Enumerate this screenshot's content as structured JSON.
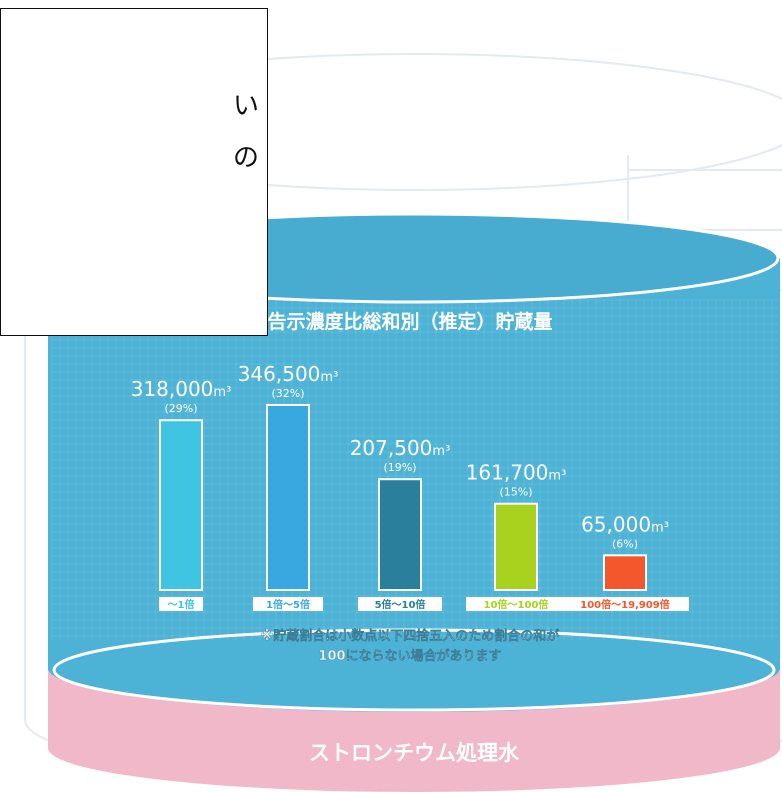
{
  "note_box": {
    "line1": "い",
    "line2": "の"
  },
  "tank_label": "ストロンチウム処理水",
  "footnote": [
    "※貯蔵割合は小数点以下四捨五入のため割合の和が",
    "100にならない場合があります"
  ],
  "colors": {
    "tank_blue": "#4db3d6",
    "tank_top": "#48abd0",
    "pink": "#f0b8c9",
    "bars": [
      "#3fc4e2",
      "#3aa8e0",
      "#2a7f9d",
      "#a8d21d",
      "#f4572b"
    ],
    "label_text": [
      "#3fc4e2",
      "#3aa8e0",
      "#2a7f9d",
      "#a8d21d",
      "#f4572b"
    ]
  },
  "chart_data": {
    "type": "bar",
    "title": "告示濃度比総和別（推定）貯蔵量",
    "categories": [
      "〜1倍",
      "1倍〜5倍",
      "5倍〜10倍",
      "10倍〜100倍",
      "100倍〜19,909倍"
    ],
    "values": [
      318000,
      346500,
      207500,
      161700,
      65000
    ],
    "value_labels": [
      "318,000",
      "346,500",
      "207,500",
      "161,700",
      "65,000"
    ],
    "unit": "m³",
    "percent_labels": [
      "(29%)",
      "(32%)",
      "(19%)",
      "(15%)",
      "(6%)"
    ],
    "ylim": [
      0,
      400000
    ]
  }
}
